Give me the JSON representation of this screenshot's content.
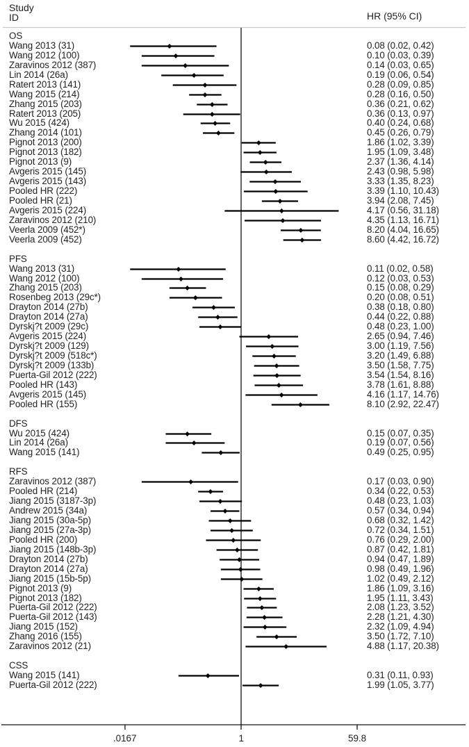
{
  "header": {
    "study_label_line1": "Study",
    "study_label_line2": "ID",
    "effect_label": "HR (95% CI)"
  },
  "axis": {
    "scale": "log",
    "ticks": [
      {
        "value": 0.0167,
        "label": ".0167"
      },
      {
        "value": 1,
        "label": "1"
      },
      {
        "value": 59.8,
        "label": "59.8"
      }
    ],
    "reference_line": 1
  },
  "chart_data": {
    "type": "forest",
    "title": "",
    "xlabel": "",
    "ylabel": "Study ID",
    "effect_measure": "HR (95% CI)",
    "xscale": "log",
    "xlim": [
      0.0167,
      59.8
    ],
    "x_ticks": [
      ".0167",
      "1",
      "59.8"
    ],
    "reference_line": 1,
    "groups": [
      {
        "name": "OS",
        "studies": [
          {
            "id": "Wang 2013 (31)",
            "hr": 0.08,
            "lo": 0.02,
            "hi": 0.42,
            "text": "0.08 (0.02, 0.42)"
          },
          {
            "id": "Wang 2012 (100)",
            "hr": 0.1,
            "lo": 0.03,
            "hi": 0.39,
            "text": "0.10 (0.03, 0.39)"
          },
          {
            "id": "Zaravinos 2012 (387)",
            "hr": 0.14,
            "lo": 0.03,
            "hi": 0.65,
            "text": "0.14 (0.03, 0.65)"
          },
          {
            "id": "Lin 2014 (26a)",
            "hr": 0.19,
            "lo": 0.06,
            "hi": 0.54,
            "text": "0.19 (0.06, 0.54)"
          },
          {
            "id": "Ratert 2013 (141)",
            "hr": 0.28,
            "lo": 0.09,
            "hi": 0.85,
            "text": "0.28 (0.09, 0.85)"
          },
          {
            "id": "Wang 2015 (214)",
            "hr": 0.28,
            "lo": 0.16,
            "hi": 0.5,
            "text": "0.28 (0.16, 0.50)"
          },
          {
            "id": "Zhang 2015 (203)",
            "hr": 0.36,
            "lo": 0.21,
            "hi": 0.62,
            "text": "0.36 (0.21, 0.62)"
          },
          {
            "id": "Ratert 2013 (205)",
            "hr": 0.36,
            "lo": 0.13,
            "hi": 0.97,
            "text": "0.36 (0.13, 0.97)"
          },
          {
            "id": "Wu 2015 (424)",
            "hr": 0.4,
            "lo": 0.24,
            "hi": 0.68,
            "text": "0.40 (0.24, 0.68)"
          },
          {
            "id": "Zhang 2014 (101)",
            "hr": 0.45,
            "lo": 0.26,
            "hi": 0.79,
            "text": "0.45 (0.26, 0.79)"
          },
          {
            "id": "Pignot 2013 (200)",
            "hr": 1.86,
            "lo": 1.02,
            "hi": 3.39,
            "text": "1.86 (1.02, 3.39)"
          },
          {
            "id": "Pignot 2013 (182)",
            "hr": 1.95,
            "lo": 1.09,
            "hi": 3.48,
            "text": "1.95 (1.09, 3.48)"
          },
          {
            "id": "Pignot 2013 (9)",
            "hr": 2.37,
            "lo": 1.36,
            "hi": 4.14,
            "text": "2.37 (1.36, 4.14)"
          },
          {
            "id": "Avgeris 2015 (145)",
            "hr": 2.43,
            "lo": 0.98,
            "hi": 5.98,
            "text": "2.43 (0.98, 5.98)"
          },
          {
            "id": "Avgeris 2015 (143)",
            "hr": 3.33,
            "lo": 1.35,
            "hi": 8.23,
            "text": "3.33 (1.35, 8.23)"
          },
          {
            "id": "Pooled HR (222)",
            "hr": 3.39,
            "lo": 1.1,
            "hi": 10.43,
            "text": "3.39 (1.10, 10.43)"
          },
          {
            "id": "Pooled HR (21)",
            "hr": 3.94,
            "lo": 2.08,
            "hi": 7.45,
            "text": "3.94 (2.08, 7.45)"
          },
          {
            "id": "Avgeris 2015 (224)",
            "hr": 4.17,
            "lo": 0.56,
            "hi": 31.18,
            "text": "4.17 (0.56, 31.18)"
          },
          {
            "id": "Zaravinos 2012 (210)",
            "hr": 4.35,
            "lo": 1.13,
            "hi": 16.71,
            "text": "4.35 (1.13, 16.71)"
          },
          {
            "id": "Veerla 2009 (452*)",
            "hr": 8.2,
            "lo": 4.04,
            "hi": 16.65,
            "text": "8.20 (4.04, 16.65)"
          },
          {
            "id": "Veerla 2009 (452)",
            "hr": 8.6,
            "lo": 4.42,
            "hi": 16.72,
            "text": "8.60 (4.42, 16.72)"
          }
        ]
      },
      {
        "name": "PFS",
        "studies": [
          {
            "id": "Wang 2013 (31)",
            "hr": 0.11,
            "lo": 0.02,
            "hi": 0.58,
            "text": "0.11 (0.02, 0.58)"
          },
          {
            "id": "Wang 2012 (100)",
            "hr": 0.12,
            "lo": 0.03,
            "hi": 0.53,
            "text": "0.12 (0.03, 0.53)"
          },
          {
            "id": "Zhang 2015 (203)",
            "hr": 0.15,
            "lo": 0.08,
            "hi": 0.29,
            "text": "0.15 (0.08, 0.29)"
          },
          {
            "id": "Rosenbeg 2013 (29c*)",
            "hr": 0.2,
            "lo": 0.08,
            "hi": 0.51,
            "text": "0.20 (0.08, 0.51)"
          },
          {
            "id": "Drayton 2014 (27b)",
            "hr": 0.38,
            "lo": 0.18,
            "hi": 0.8,
            "text": "0.38 (0.18, 0.80)"
          },
          {
            "id": "Drayton 2014 (27a)",
            "hr": 0.44,
            "lo": 0.22,
            "hi": 0.88,
            "text": "0.44 (0.22, 0.88)"
          },
          {
            "id": "Dyrskj?t 2009 (29c)",
            "hr": 0.48,
            "lo": 0.23,
            "hi": 1.0,
            "text": "0.48 (0.23, 1.00)"
          },
          {
            "id": "Avgeris 2015 (224)",
            "hr": 2.65,
            "lo": 0.94,
            "hi": 7.46,
            "text": "2.65 (0.94, 7.46)"
          },
          {
            "id": "Dyrskj?t 2009 (129)",
            "hr": 3.0,
            "lo": 1.19,
            "hi": 7.56,
            "text": "3.00 (1.19, 7.56)"
          },
          {
            "id": "Dyrskj?t 2009 (518c*)",
            "hr": 3.2,
            "lo": 1.49,
            "hi": 6.88,
            "text": "3.20 (1.49, 6.88)"
          },
          {
            "id": "Dyrskj?t 2009 (133b)",
            "hr": 3.5,
            "lo": 1.58,
            "hi": 7.75,
            "text": "3.50 (1.58, 7.75)"
          },
          {
            "id": "Puerta-Gil 2012 (222)",
            "hr": 3.54,
            "lo": 1.54,
            "hi": 8.16,
            "text": "3.54 (1.54, 8.16)"
          },
          {
            "id": "Pooled HR (143)",
            "hr": 3.78,
            "lo": 1.61,
            "hi": 8.88,
            "text": "3.78 (1.61, 8.88)"
          },
          {
            "id": "Avgeris 2015 (145)",
            "hr": 4.16,
            "lo": 1.17,
            "hi": 14.76,
            "text": "4.16 (1.17, 14.76)"
          },
          {
            "id": "Pooled HR (155)",
            "hr": 8.1,
            "lo": 2.92,
            "hi": 22.47,
            "text": "8.10 (2.92, 22.47)"
          }
        ]
      },
      {
        "name": "DFS",
        "studies": [
          {
            "id": "Wu 2015 (424)",
            "hr": 0.15,
            "lo": 0.07,
            "hi": 0.35,
            "text": "0.15 (0.07, 0.35)"
          },
          {
            "id": "Lin 2014 (26a)",
            "hr": 0.19,
            "lo": 0.07,
            "hi": 0.56,
            "text": "0.19 (0.07, 0.56)"
          },
          {
            "id": "Wang 2015 (141)",
            "hr": 0.49,
            "lo": 0.25,
            "hi": 0.95,
            "text": "0.49 (0.25, 0.95)"
          }
        ]
      },
      {
        "name": "RFS",
        "studies": [
          {
            "id": "Zaravinos 2012 (387)",
            "hr": 0.17,
            "lo": 0.03,
            "hi": 0.9,
            "text": "0.17 (0.03, 0.90)"
          },
          {
            "id": "Pooled HR (214)",
            "hr": 0.34,
            "lo": 0.22,
            "hi": 0.53,
            "text": "0.34 (0.22, 0.53)"
          },
          {
            "id": "Jiang 2015 (3187-3p)",
            "hr": 0.48,
            "lo": 0.23,
            "hi": 1.03,
            "text": "0.48 (0.23, 1.03)"
          },
          {
            "id": "Andrew 2015 (34a)",
            "hr": 0.57,
            "lo": 0.34,
            "hi": 0.94,
            "text": "0.57 (0.34, 0.94)"
          },
          {
            "id": "Jiang 2015 (30a-5p)",
            "hr": 0.68,
            "lo": 0.32,
            "hi": 1.42,
            "text": "0.68 (0.32, 1.42)"
          },
          {
            "id": "Jiang 2015 (27a-3p)",
            "hr": 0.72,
            "lo": 0.34,
            "hi": 1.51,
            "text": "0.72 (0.34, 1.51)"
          },
          {
            "id": "Pooled HR (200)",
            "hr": 0.76,
            "lo": 0.29,
            "hi": 2.0,
            "text": "0.76 (0.29, 2.00)"
          },
          {
            "id": "Jiang 2015 (148b-3p)",
            "hr": 0.87,
            "lo": 0.42,
            "hi": 1.81,
            "text": "0.87 (0.42, 1.81)"
          },
          {
            "id": "Drayton 2014 (27b)",
            "hr": 0.94,
            "lo": 0.47,
            "hi": 1.89,
            "text": "0.94 (0.47, 1.89)"
          },
          {
            "id": "Drayton 2014 (27a)",
            "hr": 0.98,
            "lo": 0.49,
            "hi": 1.96,
            "text": "0.98 (0.49, 1.96)"
          },
          {
            "id": "Jiang 2015 (15b-5p)",
            "hr": 1.02,
            "lo": 0.49,
            "hi": 2.12,
            "text": "1.02 (0.49, 2.12)"
          },
          {
            "id": "Pignot 2013 (9)",
            "hr": 1.86,
            "lo": 1.09,
            "hi": 3.16,
            "text": "1.86 (1.09, 3.16)"
          },
          {
            "id": "Pignot 2013 (182)",
            "hr": 1.95,
            "lo": 1.11,
            "hi": 3.43,
            "text": "1.95 (1.11, 3.43)"
          },
          {
            "id": "Puerta-Gil 2012 (222)",
            "hr": 2.08,
            "lo": 1.23,
            "hi": 3.52,
            "text": "2.08 (1.23, 3.52)"
          },
          {
            "id": "Puerta-Gil 2012 (143)",
            "hr": 2.28,
            "lo": 1.21,
            "hi": 4.3,
            "text": "2.28 (1.21, 4.30)"
          },
          {
            "id": "Jiang 2015 (152)",
            "hr": 2.32,
            "lo": 1.09,
            "hi": 4.94,
            "text": "2.32 (1.09, 4.94)"
          },
          {
            "id": "Zhang 2016 (155)",
            "hr": 3.5,
            "lo": 1.72,
            "hi": 7.1,
            "text": "3.50 (1.72, 7.10)"
          },
          {
            "id": "Zaravinos 2012 (21)",
            "hr": 4.88,
            "lo": 1.17,
            "hi": 20.38,
            "text": "4.88 (1.17, 20.38)"
          }
        ]
      },
      {
        "name": "CSS",
        "studies": [
          {
            "id": "Wang 2015 (141)",
            "hr": 0.31,
            "lo": 0.11,
            "hi": 0.93,
            "text": "0.31 (0.11, 0.93)"
          },
          {
            "id": "Puerta-Gil 2012 (222)",
            "hr": 1.99,
            "lo": 1.05,
            "hi": 3.77,
            "text": "1.99 (1.05, 3.77)"
          }
        ]
      }
    ]
  }
}
